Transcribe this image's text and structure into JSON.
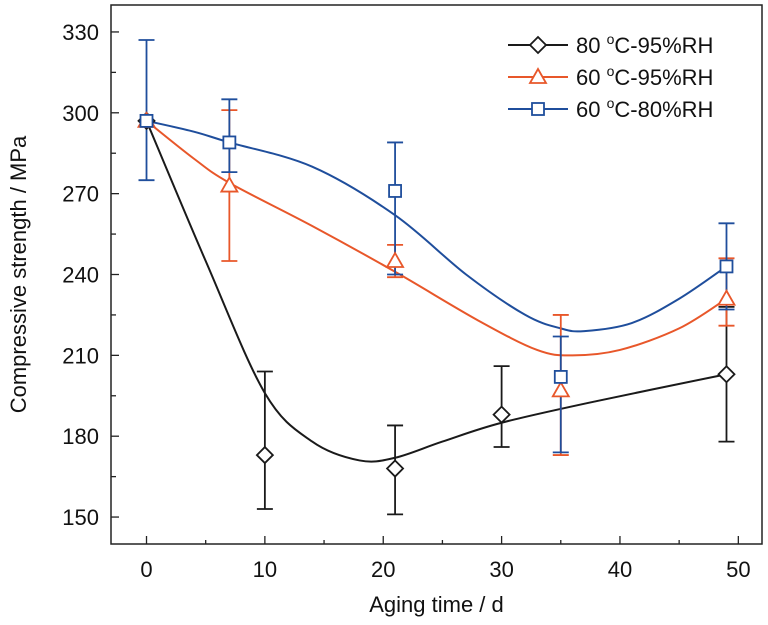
{
  "chart_data": {
    "type": "scatter",
    "title": "",
    "xlabel": "Aging time / d",
    "ylabel": "Compressive strength / MPa",
    "xlim": [
      -3,
      52
    ],
    "ylim": [
      140,
      340
    ],
    "xticks": [
      0,
      10,
      20,
      30,
      40,
      50
    ],
    "xminor": [
      5,
      15,
      25,
      35,
      45
    ],
    "yticks": [
      150,
      180,
      210,
      240,
      270,
      300,
      330
    ],
    "yminor": [
      165,
      195,
      225,
      255,
      285,
      315
    ],
    "grid": false,
    "legend_position": "top-right",
    "series": [
      {
        "name": "80 °C-95%RH",
        "label_num": "80 ",
        "label_sup": "o",
        "label_rest": "C-95%RH",
        "color": "#1a1a1a",
        "marker": "diamond",
        "x": [
          0,
          10,
          21,
          30,
          49
        ],
        "y": [
          297,
          173,
          168,
          188,
          203
        ],
        "err_upper": [
          null,
          204,
          184,
          206,
          228
        ],
        "err_lower": [
          null,
          153,
          151,
          176,
          178
        ],
        "fit": {
          "x": [
            0,
            5,
            10,
            14,
            18,
            21,
            25,
            30,
            38,
            49
          ],
          "y": [
            297,
            245,
            196,
            178,
            171,
            172,
            178,
            185,
            193,
            203
          ]
        }
      },
      {
        "name": "60 °C-95%RH",
        "label_num": "60 ",
        "label_sup": "o",
        "label_rest": "C-95%RH",
        "color": "#e8572a",
        "marker": "triangle",
        "x": [
          0,
          7,
          21,
          35,
          49
        ],
        "y": [
          297,
          273,
          245,
          197,
          231
        ],
        "err_upper": [
          null,
          301,
          251,
          225,
          246
        ],
        "err_lower": [
          null,
          245,
          239,
          173,
          221
        ],
        "fit": {
          "x": [
            0,
            4,
            7,
            14,
            21,
            28,
            33,
            36,
            40,
            45,
            49
          ],
          "y": [
            297,
            283,
            274,
            258,
            241,
            223,
            212,
            210,
            212,
            220,
            231
          ]
        }
      },
      {
        "name": "60 °C-80%RH",
        "label_num": "60 ",
        "label_sup": "o",
        "label_rest": "C-80%RH",
        "color": "#1f4e9c",
        "marker": "square",
        "x": [
          0,
          7,
          21,
          35,
          49
        ],
        "y": [
          297,
          289,
          271,
          202,
          243
        ],
        "err_upper": [
          327,
          305,
          289,
          217,
          259
        ],
        "err_lower": [
          275,
          278,
          240,
          174,
          227
        ],
        "fit": {
          "x": [
            0,
            4,
            7,
            14,
            21,
            27,
            32,
            35,
            37,
            41,
            45,
            49
          ],
          "y": [
            297,
            293,
            289,
            280,
            262,
            240,
            225,
            220,
            219,
            222,
            231,
            243
          ]
        }
      }
    ]
  }
}
